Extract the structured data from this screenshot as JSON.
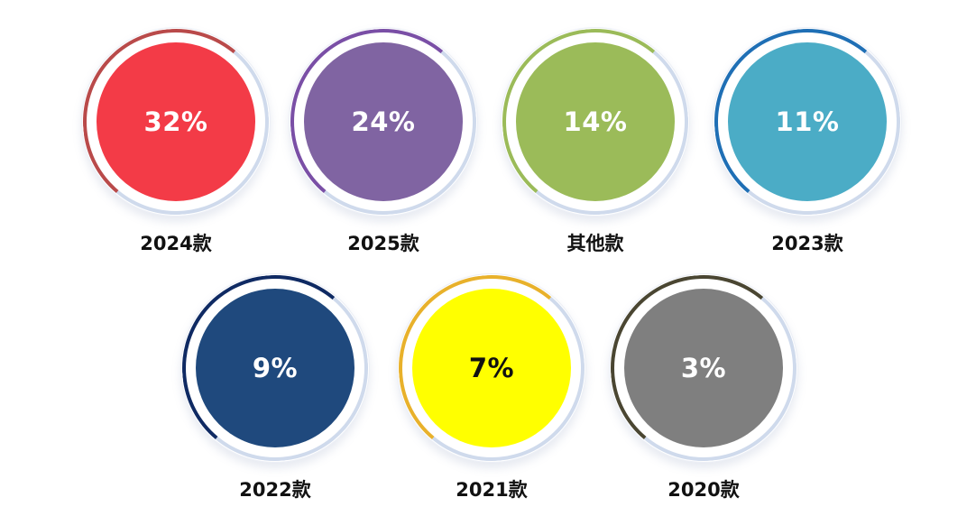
{
  "chart_data": {
    "type": "pie",
    "categories": [
      "2024款",
      "2025款",
      "其他款",
      "2023款",
      "2022款",
      "2021款",
      "2020款"
    ],
    "values": [
      32,
      24,
      14,
      11,
      9,
      7,
      3
    ],
    "value_labels": [
      "32%",
      "24%",
      "14%",
      "11%",
      "9%",
      "7%",
      "3%"
    ],
    "colors": [
      "#f33b47",
      "#8064a2",
      "#9bbb59",
      "#4bacc6",
      "#1f497d",
      "#ffff00",
      "#7f7f7f"
    ],
    "ring_colors": [
      "#b94a4a",
      "#7a4fa6",
      "#9bbb59",
      "#1f6fb5",
      "#0f2a63",
      "#e8b12b",
      "#4a4632"
    ],
    "text_colors": [
      "#ffffff",
      "#ffffff",
      "#ffffff",
      "#ffffff",
      "#ffffff",
      "#111111",
      "#ffffff"
    ],
    "title": "",
    "xlabel": "",
    "ylabel": ""
  }
}
